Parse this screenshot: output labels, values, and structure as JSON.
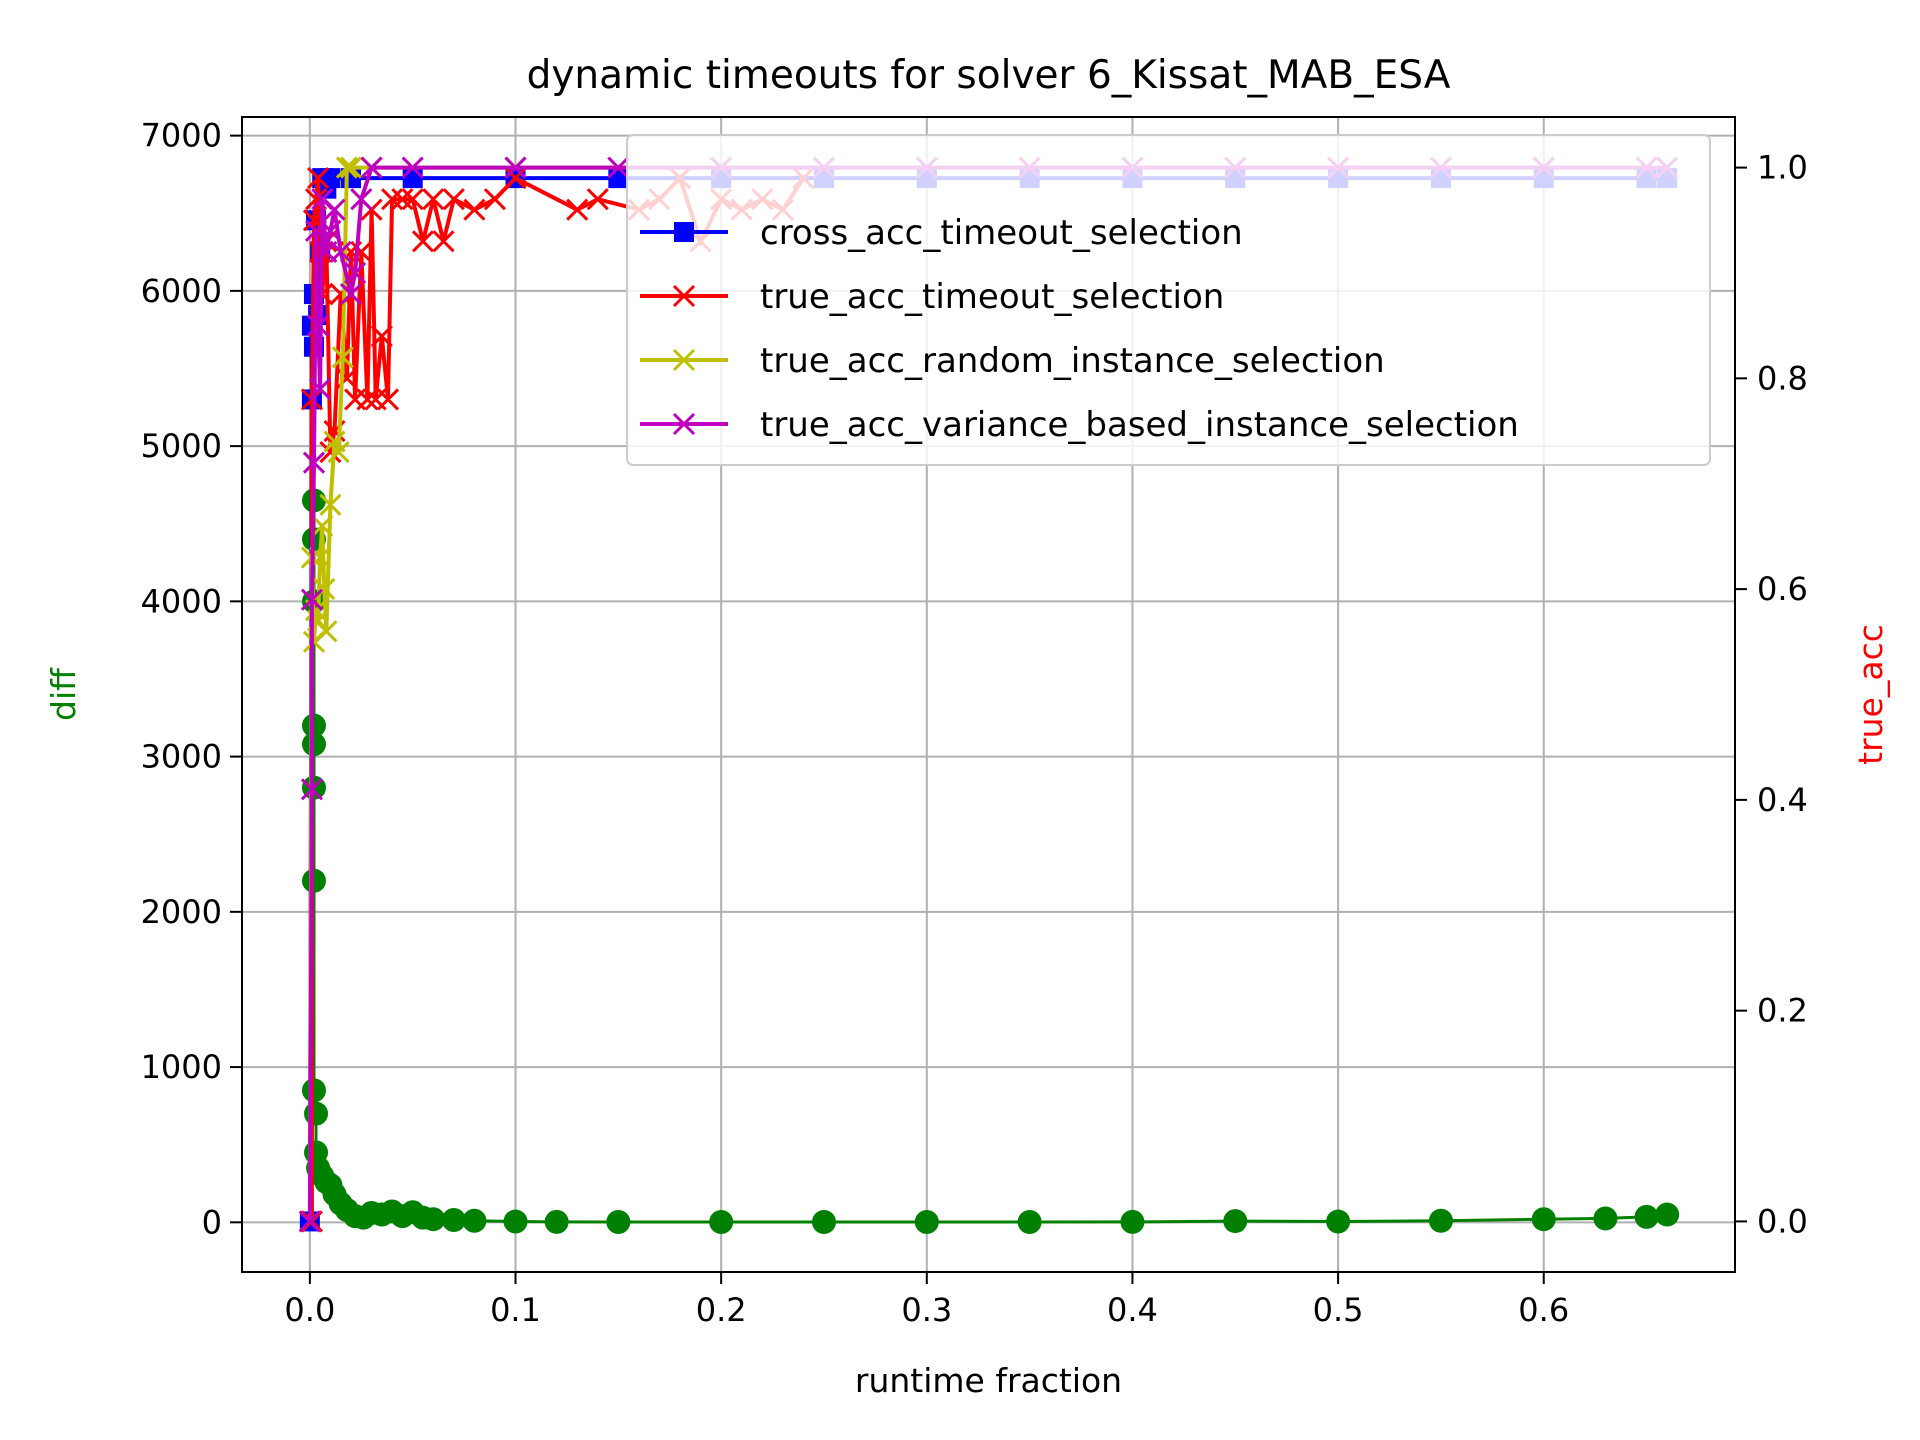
{
  "chart_data": {
    "type": "line",
    "title": "dynamic timeouts for solver 6_Kissat_MAB_ESA",
    "xlabel": "runtime fraction",
    "ylabel_left": "diff",
    "ylabel_right": "true_acc",
    "xlim": [
      -0.033,
      0.693
    ],
    "ylim_left": [
      -320,
      7120
    ],
    "ylim_right": [
      -0.048,
      1.048
    ],
    "x_ticks": [
      0.0,
      0.1,
      0.2,
      0.3,
      0.4,
      0.5,
      0.6
    ],
    "x_tick_labels": [
      "0.0",
      "0.1",
      "0.2",
      "0.3",
      "0.4",
      "0.5",
      "0.6"
    ],
    "y_left_ticks": [
      0,
      1000,
      2000,
      3000,
      4000,
      5000,
      6000,
      7000
    ],
    "y_left_tick_labels": [
      "0",
      "1000",
      "2000",
      "3000",
      "4000",
      "5000",
      "6000",
      "7000"
    ],
    "y_right_ticks": [
      0.0,
      0.2,
      0.4,
      0.6,
      0.8,
      1.0
    ],
    "y_right_tick_labels": [
      "0.0",
      "0.2",
      "0.4",
      "0.6",
      "0.8",
      "1.0"
    ],
    "grid": true,
    "legend_position": "upper-right",
    "colors": {
      "diff": "#008000",
      "cross": "#0000ff",
      "true_timeout": "#ff0000",
      "random": "#bfbf00",
      "variance": "#bf00bf"
    },
    "series": [
      {
        "name": "diff",
        "axis": "left",
        "color": "#008000",
        "marker": "circle",
        "x": [
          0.002,
          0.002,
          0.002,
          0.002,
          0.002,
          0.002,
          0.002,
          0.002,
          0.003,
          0.003,
          0.004,
          0.006,
          0.008,
          0.01,
          0.012,
          0.015,
          0.018,
          0.022,
          0.026,
          0.03,
          0.035,
          0.04,
          0.045,
          0.05,
          0.055,
          0.06,
          0.07,
          0.08,
          0.1,
          0.12,
          0.15,
          0.2,
          0.25,
          0.3,
          0.35,
          0.4,
          0.45,
          0.5,
          0.55,
          0.6,
          0.63,
          0.65,
          0.66
        ],
        "y": [
          4650,
          4400,
          4000,
          3200,
          3080,
          2800,
          2200,
          850,
          700,
          450,
          350,
          300,
          260,
          240,
          180,
          120,
          80,
          40,
          30,
          60,
          50,
          70,
          40,
          65,
          30,
          20,
          15,
          10,
          5,
          3,
          2,
          2,
          2,
          2,
          2,
          3,
          8,
          5,
          10,
          20,
          25,
          35,
          50
        ]
      },
      {
        "name": "cross_acc_timeout_selection",
        "axis": "right",
        "color": "#0000ff",
        "marker": "square",
        "x": [
          0.0,
          0.001,
          0.001,
          0.002,
          0.002,
          0.003,
          0.004,
          0.005,
          0.006,
          0.008,
          0.01,
          0.02,
          0.05,
          0.1,
          0.15,
          0.2,
          0.25,
          0.3,
          0.35,
          0.4,
          0.45,
          0.5,
          0.55,
          0.6,
          0.65,
          0.66
        ],
        "y": [
          0.0,
          0.78,
          0.85,
          0.88,
          0.83,
          0.95,
          0.86,
          0.92,
          0.99,
          0.98,
          0.99,
          0.99,
          0.99,
          0.99,
          0.99,
          0.99,
          0.99,
          0.99,
          0.99,
          0.99,
          0.99,
          0.99,
          0.99,
          0.99,
          0.99,
          0.99
        ]
      },
      {
        "name": "true_acc_timeout_selection",
        "axis": "right",
        "color": "#ff0000",
        "marker": "x",
        "x": [
          0.0,
          0.001,
          0.001,
          0.002,
          0.003,
          0.004,
          0.005,
          0.006,
          0.008,
          0.01,
          0.012,
          0.015,
          0.018,
          0.02,
          0.022,
          0.025,
          0.028,
          0.03,
          0.032,
          0.035,
          0.038,
          0.04,
          0.045,
          0.05,
          0.055,
          0.06,
          0.065,
          0.07,
          0.08,
          0.09,
          0.1,
          0.13,
          0.14,
          0.16,
          0.17,
          0.18,
          0.19,
          0.2,
          0.21,
          0.22,
          0.23,
          0.24
        ],
        "y": [
          0.0,
          0.0,
          0.78,
          0.95,
          0.97,
          0.99,
          0.92,
          0.88,
          0.93,
          0.73,
          0.75,
          0.88,
          0.8,
          0.92,
          0.78,
          0.92,
          0.78,
          0.96,
          0.78,
          0.84,
          0.78,
          0.97,
          0.97,
          0.97,
          0.93,
          0.97,
          0.93,
          0.97,
          0.96,
          0.97,
          0.99,
          0.96,
          0.97,
          0.96,
          0.97,
          0.99,
          0.93,
          0.97,
          0.96,
          0.97,
          0.96,
          0.99
        ]
      },
      {
        "name": "true_acc_random_instance_selection",
        "axis": "right",
        "color": "#bfbf00",
        "marker": "x",
        "x": [
          0.0,
          0.001,
          0.002,
          0.003,
          0.004,
          0.005,
          0.006,
          0.007,
          0.008,
          0.01,
          0.012,
          0.014,
          0.016,
          0.018,
          0.02,
          0.03,
          0.1,
          0.2,
          0.3,
          0.4,
          0.5,
          0.6,
          0.66
        ],
        "y": [
          0.0,
          0.63,
          0.55,
          0.58,
          0.57,
          0.63,
          0.66,
          0.6,
          0.56,
          0.68,
          0.74,
          0.73,
          0.82,
          1.0,
          1.0,
          1.0,
          1.0,
          1.0,
          1.0,
          1.0,
          1.0,
          1.0,
          1.0
        ]
      },
      {
        "name": "true_acc_variance_based_instance_selection",
        "axis": "right",
        "color": "#bf00bf",
        "marker": "x",
        "x": [
          0.0,
          0.001,
          0.001,
          0.002,
          0.003,
          0.004,
          0.005,
          0.006,
          0.008,
          0.01,
          0.012,
          0.015,
          0.02,
          0.022,
          0.025,
          0.03,
          0.05,
          0.1,
          0.15,
          0.2,
          0.25,
          0.3,
          0.35,
          0.4,
          0.45,
          0.5,
          0.55,
          0.6,
          0.65,
          0.66
        ],
        "y": [
          0.0,
          0.41,
          0.59,
          0.72,
          0.94,
          0.85,
          0.79,
          0.97,
          0.92,
          0.94,
          0.96,
          0.92,
          0.88,
          0.9,
          0.97,
          1.0,
          1.0,
          1.0,
          1.0,
          1.0,
          1.0,
          1.0,
          1.0,
          1.0,
          1.0,
          1.0,
          1.0,
          1.0,
          1.0,
          1.0
        ]
      }
    ]
  }
}
